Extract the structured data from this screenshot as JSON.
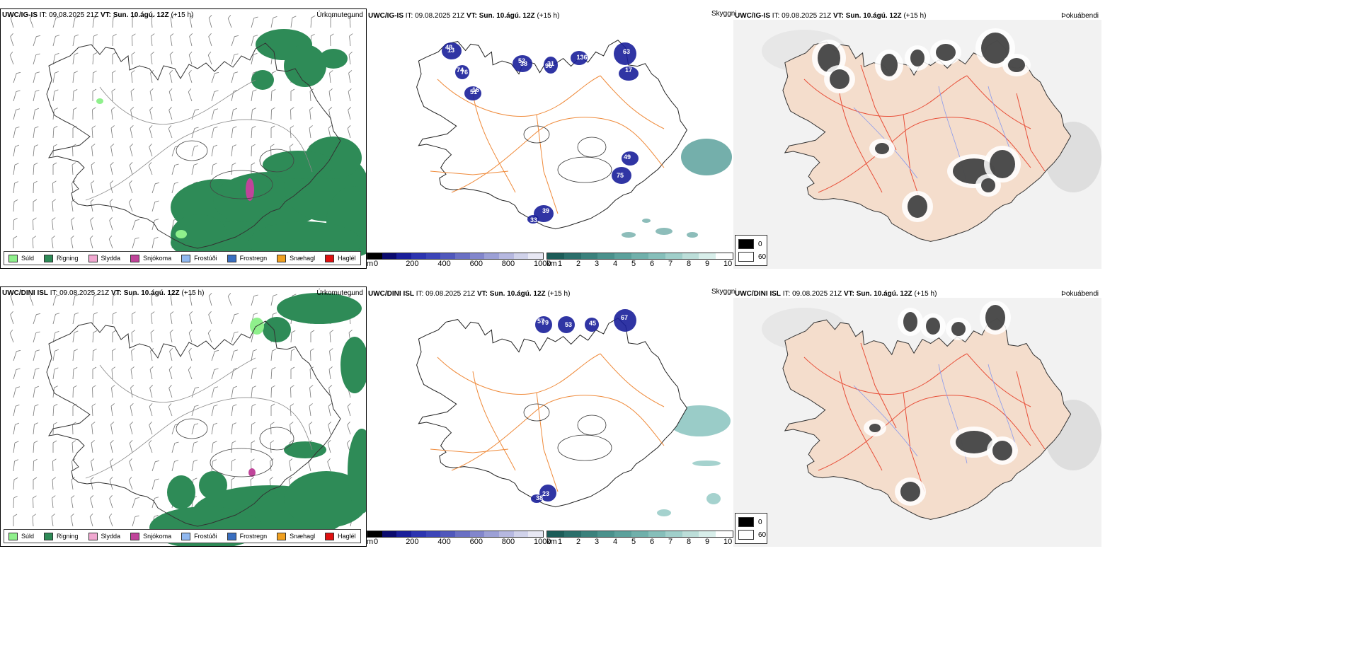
{
  "rows": [
    {
      "model": "UWC/IG-IS",
      "it_label": "IT:",
      "it_value": "09.08.2025 21Z",
      "vt_label": "VT:",
      "vt_value": "Sun. 10.ágú. 12Z",
      "lead": "(+15 h)",
      "panels": {
        "precip_type": "Úrkomutegund",
        "cloud_base": "Skyggni",
        "fog": "Þokuábendi"
      },
      "snow_labels": [
        "48",
        "76",
        "51",
        "52",
        "96",
        "136",
        "63",
        "17",
        "75",
        "49",
        "39",
        "33",
        "13",
        "74",
        "16",
        "38",
        "31"
      ]
    },
    {
      "model": "UWC/DINI ISL",
      "it_label": "IT:",
      "it_value": "09.08.2025 21Z",
      "vt_label": "VT:",
      "vt_value": "Sun. 10.ágú. 12Z",
      "lead": "(+15 h)",
      "panels": {
        "precip_type": "Úrkomutegund",
        "cloud_base": "Skyggni",
        "fog": "Þokuábendi"
      },
      "snow_labels": [
        "57",
        "53",
        "45",
        "67",
        "23",
        "38",
        "79"
      ]
    }
  ],
  "precip_legend": [
    {
      "label": "Súld",
      "color": "#8ff08c"
    },
    {
      "label": "Rigning",
      "color": "#2e8b57"
    },
    {
      "label": "Slydda",
      "color": "#f0a8d0"
    },
    {
      "label": "Snjókoma",
      "color": "#c0449a"
    },
    {
      "label": "Frostúði",
      "color": "#90b8f0"
    },
    {
      "label": "Frostregn",
      "color": "#3a6fc0"
    },
    {
      "label": "Snæhagl",
      "color": "#f0a020"
    },
    {
      "label": "Haglél",
      "color": "#e01010"
    }
  ],
  "snow_bar": {
    "unit": "m",
    "ticks": [
      "0",
      "200",
      "400",
      "600",
      "800",
      "1000"
    ],
    "colors": [
      "#000000",
      "#0b0b6e",
      "#1a1f9a",
      "#2c34b0",
      "#3c45b8",
      "#5058bc",
      "#6a70c4",
      "#8286cc",
      "#9ca0d6",
      "#b6b8e0",
      "#d0d2ea",
      "#e8e8f4"
    ]
  },
  "vis_bar": {
    "unit": "km",
    "ticks": [
      "1",
      "2",
      "3",
      "4",
      "5",
      "6",
      "7",
      "8",
      "9",
      "10"
    ],
    "colors": [
      "#1c5c58",
      "#2b6f6b",
      "#3a817c",
      "#4a918c",
      "#5ca19c",
      "#70b0ab",
      "#86bfba",
      "#a0cfca",
      "#bcded9",
      "#d8eeea",
      "#ffffff"
    ]
  },
  "fog_legend": [
    {
      "label": "0",
      "color": "#000000"
    },
    {
      "label": "60",
      "color": "#ffffff"
    }
  ]
}
